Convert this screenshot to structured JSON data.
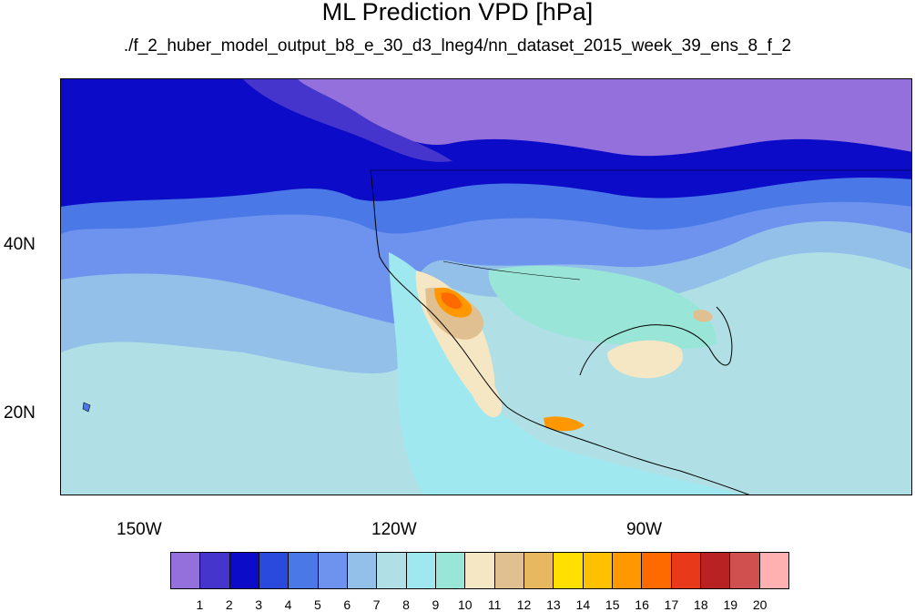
{
  "title": "ML Prediction VPD [hPa]",
  "subtitle": "./f_2_huber_model_output_b8_e_30_d3_lneg4/nn_dataset_2015_week_39_ens_8_f_2",
  "lat_labels": [
    "40N",
    "20N"
  ],
  "lon_labels": [
    "150W",
    "120W",
    "90W"
  ],
  "colorbar": {
    "colors": [
      "#9370db",
      "#4535cc",
      "#0b0bc8",
      "#2a49dd",
      "#4a78e6",
      "#6d93ee",
      "#93c0e8",
      "#b0e0e6",
      "#a0e8f0",
      "#99e6d8",
      "#f5e6c4",
      "#e0c090",
      "#e8b860",
      "#ffe000",
      "#ffc000",
      "#ff9800",
      "#ff6a00",
      "#e83a1a",
      "#b82222",
      "#d05050",
      "#ffb0b0"
    ],
    "labels": [
      "1",
      "2",
      "3",
      "4",
      "5",
      "6",
      "7",
      "8",
      "9",
      "10",
      "11",
      "12",
      "13",
      "14",
      "15",
      "16",
      "17",
      "18",
      "19",
      "20"
    ]
  }
}
